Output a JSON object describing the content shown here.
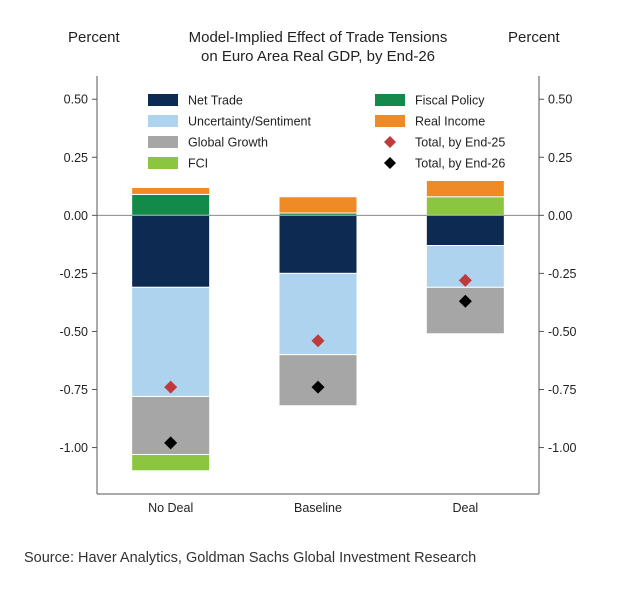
{
  "chart_data": {
    "type": "bar",
    "stacked": true,
    "title_lines": [
      "Model-Implied Effect of Trade Tensions",
      "on Euro Area Real GDP, by End-26"
    ],
    "ylabel_left": "Percent",
    "ylabel_right": "Percent",
    "ylim": [
      -1.2,
      0.6
    ],
    "yticks": [
      0.5,
      0.25,
      0.0,
      -0.25,
      -0.5,
      -0.75,
      -1.0
    ],
    "ytick_labels": [
      "0.50",
      "0.25",
      "0.00",
      "-0.25",
      "-0.50",
      "-0.75",
      "-1.00"
    ],
    "categories": [
      "No Deal",
      "Baseline",
      "Deal"
    ],
    "series": [
      {
        "name": "Net Trade",
        "color": "#0d2a52",
        "values": [
          -0.31,
          -0.25,
          -0.13
        ]
      },
      {
        "name": "Uncertainty/Sentiment",
        "color": "#aed3ee",
        "values": [
          -0.47,
          -0.35,
          -0.18
        ]
      },
      {
        "name": "Global Growth",
        "color": "#a6a6a6",
        "values": [
          -0.25,
          -0.22,
          -0.2
        ]
      },
      {
        "name": "FCI",
        "color": "#8cc540",
        "values": [
          -0.07,
          0.0,
          0.08
        ]
      },
      {
        "name": "Fiscal Policy",
        "color": "#138a4a",
        "values": [
          0.09,
          0.01,
          0.0
        ]
      },
      {
        "name": "Real Income",
        "color": "#f08a24",
        "values": [
          0.03,
          0.07,
          0.07
        ]
      }
    ],
    "markers": [
      {
        "name": "Total, by End-25",
        "color": "#c0393d",
        "values": [
          -0.74,
          -0.54,
          -0.28
        ]
      },
      {
        "name": "Total, by End-26",
        "color": "#000000",
        "values": [
          -0.98,
          -0.74,
          -0.37
        ]
      }
    ],
    "legend_left": [
      "Net Trade",
      "Uncertainty/Sentiment",
      "Global Growth",
      "FCI"
    ],
    "legend_right": [
      "Fiscal Policy",
      "Real Income",
      "Total, by End-25",
      "Total, by End-26"
    ],
    "source": "Source: Haver Analytics, Goldman Sachs Global Investment Research"
  }
}
